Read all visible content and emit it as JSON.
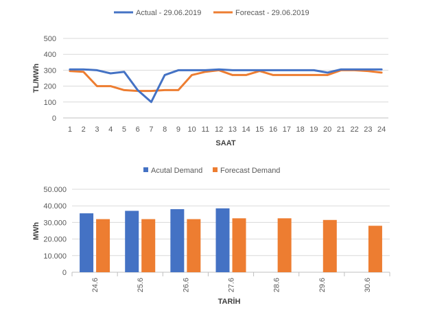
{
  "colors": {
    "actual": "#4472C4",
    "forecast": "#ED7D31",
    "grid": "#D9D9D9",
    "axis": "#BFBFBF"
  },
  "chart_data": [
    {
      "type": "line",
      "legend": [
        "Actual - 29.06.2019",
        "Forecast - 29.06.2019"
      ],
      "xlabel": "SAAT",
      "ylabel": "TL/MWh",
      "ylim": [
        0,
        500
      ],
      "yticks": [
        "0",
        "100",
        "200",
        "300",
        "400",
        "500"
      ],
      "x": [
        "1",
        "2",
        "3",
        "4",
        "5",
        "6",
        "7",
        "8",
        "9",
        "10",
        "11",
        "12",
        "13",
        "14",
        "15",
        "16",
        "17",
        "18",
        "19",
        "20",
        "21",
        "22",
        "23",
        "24"
      ],
      "series": [
        {
          "name": "Actual - 29.06.2019",
          "values": [
            305,
            305,
            300,
            280,
            290,
            175,
            100,
            270,
            300,
            300,
            300,
            305,
            300,
            300,
            300,
            300,
            300,
            300,
            300,
            285,
            305,
            305,
            305,
            305
          ]
        },
        {
          "name": "Forecast - 29.06.2019",
          "values": [
            295,
            290,
            200,
            200,
            175,
            170,
            170,
            175,
            175,
            270,
            290,
            300,
            270,
            270,
            295,
            270,
            270,
            270,
            270,
            270,
            300,
            300,
            295,
            285
          ]
        }
      ]
    },
    {
      "type": "bar",
      "legend": [
        "Acutal Demand",
        "Forecast Demand"
      ],
      "xlabel": "TARİH",
      "ylabel": "MWh",
      "ylim": [
        0,
        50000
      ],
      "yticks": [
        "0",
        "10.000",
        "20.000",
        "30.000",
        "40.000",
        "50.000"
      ],
      "categories": [
        "24.6",
        "25.6",
        "26.6",
        "27.6",
        "28.6",
        "29.6",
        "30.6"
      ],
      "series": [
        {
          "name": "Acutal Demand",
          "values": [
            35500,
            37000,
            38000,
            38500,
            null,
            null,
            null
          ]
        },
        {
          "name": "Forecast Demand",
          "values": [
            32000,
            32000,
            32000,
            32500,
            32500,
            31500,
            28000
          ]
        }
      ]
    }
  ]
}
